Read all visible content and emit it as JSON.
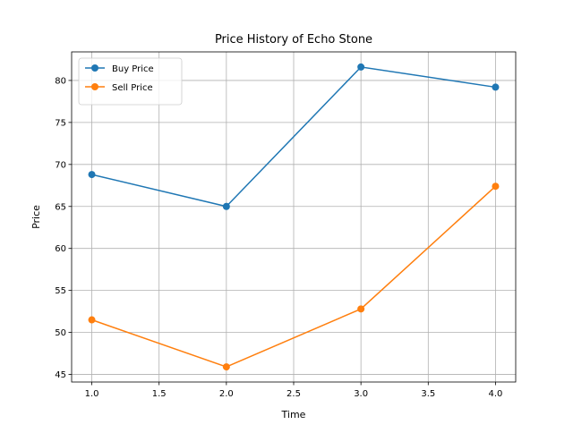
{
  "chart_data": {
    "type": "line",
    "title": "Price History of Echo Stone",
    "xlabel": "Time",
    "ylabel": "Price",
    "x": [
      1.0,
      2.0,
      3.0,
      4.0
    ],
    "xlim": [
      0.85,
      4.15
    ],
    "ylim": [
      44.1,
      83.4
    ],
    "xticks": [
      1.0,
      1.5,
      2.0,
      2.5,
      3.0,
      3.5,
      4.0
    ],
    "xtick_labels": [
      "1.0",
      "1.5",
      "2.0",
      "2.5",
      "3.0",
      "3.5",
      "4.0"
    ],
    "yticks": [
      45,
      50,
      55,
      60,
      65,
      70,
      75,
      80
    ],
    "ytick_labels": [
      "45",
      "50",
      "55",
      "60",
      "65",
      "70",
      "75",
      "80"
    ],
    "grid": true,
    "legend_position": "top-left",
    "series": [
      {
        "name": "Buy Price",
        "color": "#1f77b4",
        "marker": "circle",
        "values": [
          68.8,
          65.0,
          81.6,
          79.2
        ]
      },
      {
        "name": "Sell Price",
        "color": "#ff7f0e",
        "marker": "circle",
        "values": [
          51.5,
          45.9,
          52.8,
          67.4
        ]
      }
    ]
  }
}
